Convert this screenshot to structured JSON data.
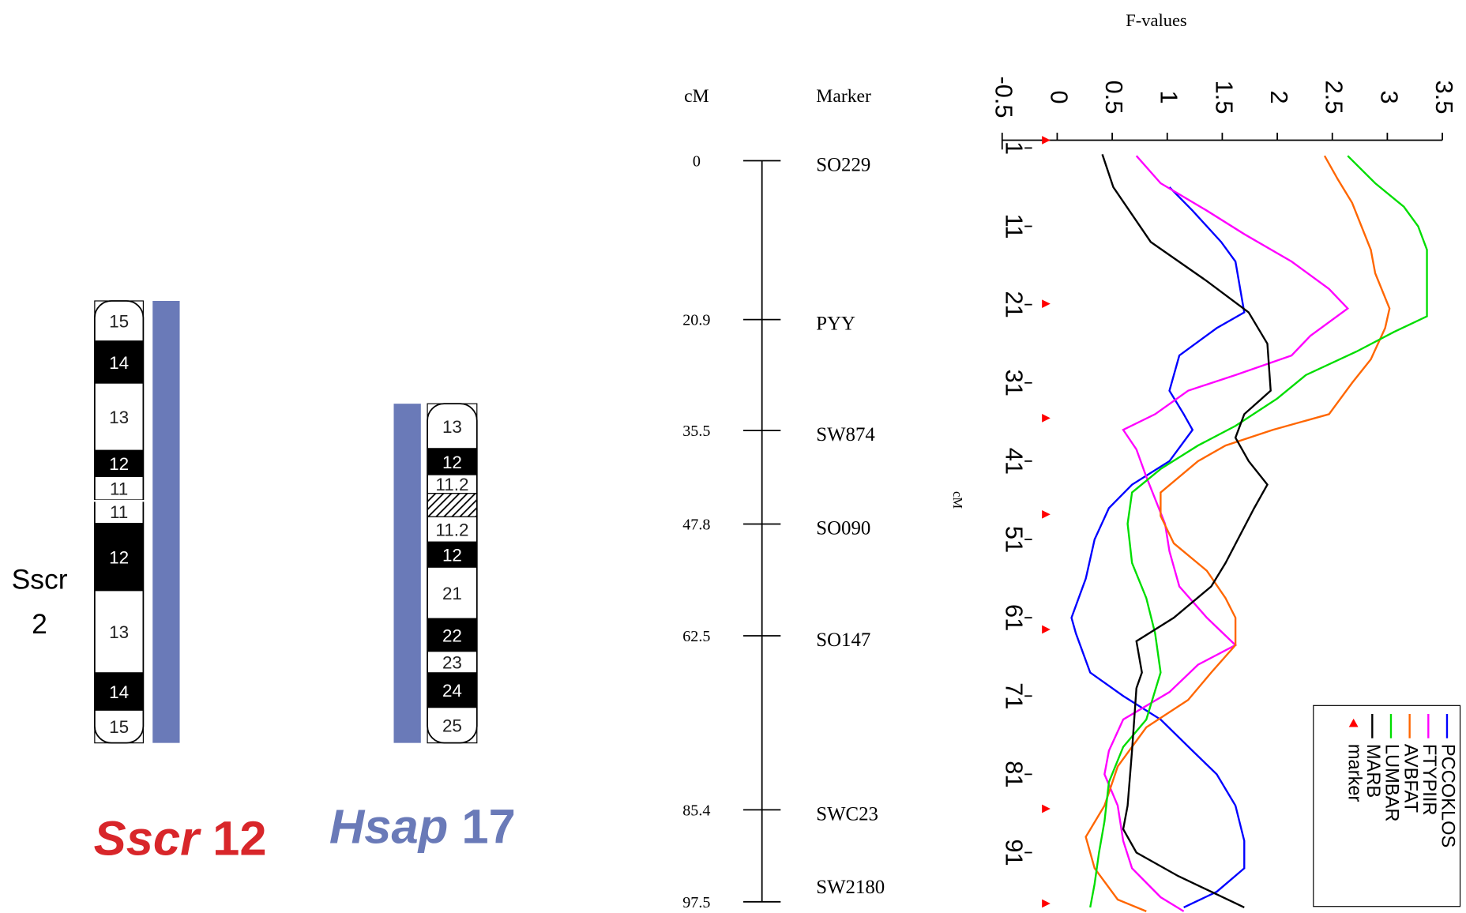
{
  "ideograms": [
    {
      "side_label": [
        "Sscr",
        "2"
      ],
      "species": "Sscr",
      "number": "12",
      "bands": [
        "15",
        "14",
        "13",
        "12",
        "11",
        "11",
        "12",
        "13",
        "14",
        "15"
      ]
    },
    {
      "species": "Hsap",
      "number": "17",
      "bands": [
        "13",
        "12",
        "11.2",
        "11.2",
        "12",
        "21",
        "22",
        "23",
        "24",
        "25"
      ]
    }
  ],
  "linkage_map": {
    "position_header": "cM",
    "marker_header": "Marker",
    "positions": [
      0,
      20.9,
      35.5,
      47.8,
      62.5,
      85.4,
      97.5
    ],
    "markers": [
      "SO229",
      "PYY",
      "SW874",
      "SO090",
      "SO147",
      "SWC23",
      "SW2180"
    ]
  },
  "chart_data": {
    "type": "line",
    "title": "F-values",
    "x_label": "cM",
    "xlim": [
      0,
      98
    ],
    "xticks": [
      1,
      11,
      21,
      31,
      41,
      51,
      61,
      71,
      81,
      91
    ],
    "ylim": [
      -0.5,
      3.5
    ],
    "yticks": [
      -0.5,
      0,
      0.5,
      1,
      1.5,
      2,
      2.5,
      3,
      3.5
    ],
    "legend": "lower right",
    "series": [
      {
        "name": "PCCOKLOS",
        "color": "#0000ff",
        "x": [
          6,
          9,
          13,
          15.5,
          22,
          24,
          27.5,
          32,
          35,
          37,
          41,
          44,
          47,
          51,
          56,
          61,
          63,
          68,
          71,
          74,
          78,
          81,
          85,
          89.5,
          93,
          96,
          98
        ],
        "values": [
          1.02,
          1.23,
          1.49,
          1.62,
          1.7,
          1.45,
          1.11,
          1.02,
          1.15,
          1.23,
          1.02,
          0.68,
          0.47,
          0.34,
          0.26,
          0.13,
          0.17,
          0.3,
          0.6,
          0.94,
          1.23,
          1.45,
          1.62,
          1.7,
          1.7,
          1.45,
          1.15
        ]
      },
      {
        "name": "FTYPIIR",
        "color": "#ff00ff",
        "x": [
          2,
          5.5,
          9,
          12,
          15.5,
          19,
          21.5,
          25,
          27.5,
          30,
          32,
          35,
          37,
          39.5,
          43,
          49,
          52.5,
          57,
          61,
          64.5,
          67,
          70.5,
          74,
          78,
          81,
          85,
          89.5,
          93,
          96.7,
          98.5
        ],
        "values": [
          0.72,
          0.94,
          1.36,
          1.7,
          2.13,
          2.47,
          2.64,
          2.3,
          2.13,
          1.62,
          1.19,
          0.89,
          0.6,
          0.72,
          0.81,
          0.98,
          1.02,
          1.11,
          1.36,
          1.62,
          1.28,
          1.02,
          0.6,
          0.47,
          0.43,
          0.55,
          0.6,
          0.68,
          0.94,
          1.15
        ]
      },
      {
        "name": "AVBFAT",
        "color": "#ff6600",
        "x": [
          2,
          5,
          8,
          14,
          17,
          21.5,
          24,
          28,
          31,
          35,
          37,
          39,
          41,
          45,
          48,
          51.5,
          55,
          58.5,
          61,
          64.5,
          68,
          71.5,
          75,
          80,
          85,
          89,
          93,
          97,
          98.5
        ],
        "values": [
          2.43,
          2.55,
          2.68,
          2.85,
          2.89,
          3.02,
          2.98,
          2.85,
          2.68,
          2.47,
          1.96,
          1.53,
          1.28,
          0.94,
          0.94,
          1.06,
          1.36,
          1.53,
          1.62,
          1.62,
          1.4,
          1.19,
          0.81,
          0.55,
          0.43,
          0.26,
          0.34,
          0.55,
          0.81
        ]
      },
      {
        "name": "LUMBAR",
        "color": "#00dd00",
        "x": [
          2,
          5.5,
          8.5,
          11,
          14,
          18,
          22.5,
          24.5,
          27,
          30,
          33,
          36.5,
          39,
          42,
          45,
          49,
          54,
          58.5,
          63,
          68,
          74,
          77.5,
          82,
          87,
          91,
          95,
          98
        ],
        "values": [
          2.64,
          2.89,
          3.15,
          3.28,
          3.36,
          3.36,
          3.36,
          3.06,
          2.72,
          2.26,
          2,
          1.62,
          1.28,
          0.94,
          0.68,
          0.64,
          0.68,
          0.81,
          0.89,
          0.94,
          0.81,
          0.6,
          0.47,
          0.43,
          0.38,
          0.34,
          0.3
        ]
      },
      {
        "name": "MARB",
        "color": "#000000",
        "x": [
          1.8,
          6,
          13,
          18,
          22,
          26,
          32,
          35,
          38,
          41,
          44,
          47,
          54,
          57,
          61,
          64,
          68,
          70,
          78,
          85,
          88,
          91,
          94,
          98
        ],
        "values": [
          0.41,
          0.51,
          0.85,
          1.36,
          1.74,
          1.91,
          1.94,
          1.7,
          1.62,
          1.74,
          1.91,
          1.79,
          1.53,
          1.4,
          1.06,
          0.72,
          0.77,
          0.72,
          0.68,
          0.64,
          0.6,
          0.72,
          1.1,
          1.7
        ]
      },
      {
        "name": "marker",
        "color": "#ff0000",
        "mode": "markers",
        "x": [
          0,
          20.9,
          35.5,
          47.8,
          62.5,
          85.4,
          97.5
        ],
        "values": [
          -0.1,
          -0.1,
          -0.1,
          -0.1,
          -0.1,
          -0.1,
          -0.1
        ]
      }
    ]
  }
}
